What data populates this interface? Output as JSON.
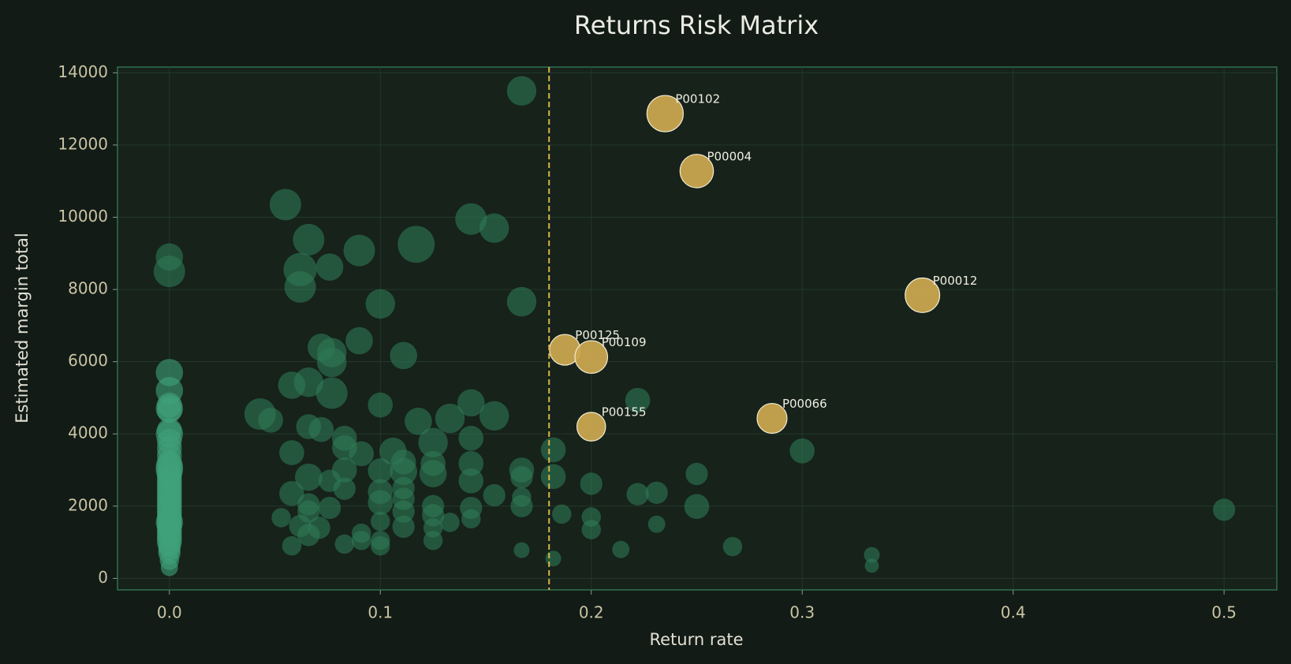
{
  "chart_data": {
    "type": "scatter",
    "title": "Returns Risk Matrix",
    "x_label": "Return rate",
    "y_label": "Estimated margin total",
    "xlim": [
      -0.0246,
      0.525
    ],
    "ylim": [
      -319,
      14160
    ],
    "xticks": [
      {
        "value": 0,
        "label": "0.0"
      },
      0.1,
      0.2,
      0.3,
      0.4,
      0.5
    ],
    "yticks": [
      0,
      2000,
      4000,
      6000,
      8000,
      10000,
      12000,
      14000
    ],
    "grid": true,
    "threshold": {
      "x": 0.18,
      "color": "#d9b44a"
    },
    "series": [
      {
        "color": "#2f7a55",
        "opacity": 0.6,
        "x": [
          0.167,
          0.055,
          0.143,
          0.154,
          0.117,
          0.066,
          0.09,
          0.062,
          0.076,
          0.062,
          0.1,
          0.167,
          0.0,
          0.0,
          0.072,
          0.077,
          0.077,
          0.09,
          0.111,
          0.058,
          0.066,
          0.077,
          0.043,
          0.048,
          0.066,
          0.072,
          0.1,
          0.118,
          0.133,
          0.143,
          0.154,
          0.083,
          0.083,
          0.091,
          0.106,
          0.111,
          0.125,
          0.143,
          0.058,
          0.066,
          0.083,
          0.1,
          0.111,
          0.125,
          0.125,
          0.143,
          0.143,
          0.167,
          0.167,
          0.182,
          0.182,
          0.2,
          0.222,
          0.222,
          0.231,
          0.25,
          0.25,
          0.3,
          0.058,
          0.066,
          0.076,
          0.083,
          0.1,
          0.1,
          0.111,
          0.111,
          0.111,
          0.125,
          0.125,
          0.143,
          0.154,
          0.167,
          0.167,
          0.053,
          0.062,
          0.066,
          0.066,
          0.071,
          0.076,
          0.083,
          0.091,
          0.091,
          0.1,
          0.1,
          0.1,
          0.111,
          0.125,
          0.125,
          0.133,
          0.143,
          0.058,
          0.167,
          0.182,
          0.186,
          0.2,
          0.2,
          0.214,
          0.231,
          0.267,
          0.333,
          0.333,
          0.5
        ],
        "values": [
          13500,
          10350,
          9950,
          9700,
          9250,
          9380,
          9080,
          8550,
          8620,
          8070,
          7600,
          7660,
          8900,
          8500,
          6400,
          6250,
          5980,
          6580,
          6170,
          5350,
          5430,
          5130,
          4550,
          4380,
          4200,
          4120,
          4800,
          4350,
          4430,
          4860,
          4500,
          3880,
          3620,
          3450,
          3520,
          3220,
          3760,
          3880,
          3480,
          2800,
          3000,
          2980,
          2960,
          3180,
          2900,
          3180,
          2700,
          3000,
          2800,
          3560,
          2820,
          2620,
          4930,
          2330,
          2370,
          2890,
          1990,
          3530,
          2350,
          2050,
          2700,
          2480,
          2400,
          2100,
          2500,
          2200,
          1850,
          2000,
          1750,
          1950,
          2300,
          2250,
          2000,
          1680,
          1450,
          1850,
          1200,
          1400,
          1950,
          950,
          1250,
          1050,
          1580,
          1050,
          900,
          1430,
          1400,
          1050,
          1550,
          1650,
          900,
          780,
          550,
          1780,
          1700,
          1350,
          800,
          1500,
          880,
          650,
          350,
          1900
        ],
        "sizes": [
          350,
          400,
          400,
          350,
          550,
          400,
          400,
          450,
          300,
          400,
          350,
          350,
          300,
          400,
          300,
          350,
          350,
          300,
          300,
          300,
          350,
          400,
          400,
          250,
          250,
          250,
          250,
          300,
          350,
          300,
          350,
          250,
          250,
          250,
          300,
          250,
          350,
          250,
          250,
          300,
          250,
          250,
          300,
          250,
          300,
          250,
          250,
          250,
          200,
          250,
          250,
          200,
          250,
          200,
          200,
          200,
          250,
          250,
          250,
          200,
          200,
          200,
          250,
          250,
          200,
          200,
          200,
          200,
          200,
          200,
          200,
          150,
          200,
          150,
          200,
          200,
          200,
          200,
          200,
          150,
          150,
          150,
          150,
          150,
          150,
          200,
          150,
          150,
          150,
          150,
          150,
          100,
          100,
          150,
          150,
          150,
          120,
          120,
          150,
          100,
          80,
          200
        ]
      },
      {
        "color": "#3fa27a",
        "opacity": 0.6,
        "x": [
          0,
          0,
          0,
          0,
          0,
          0,
          0,
          0,
          0,
          0,
          0,
          0,
          0,
          0,
          0,
          0,
          0,
          0,
          0,
          0,
          0,
          0,
          0,
          0,
          0,
          0,
          0,
          0,
          0,
          0,
          0,
          0,
          0,
          0,
          0,
          0,
          0,
          0,
          0
        ],
        "values": [
          5700,
          5200,
          4800,
          4700,
          4650,
          4100,
          4000,
          3800,
          3600,
          3400,
          3200,
          3100,
          3000,
          2900,
          2800,
          2700,
          2600,
          2500,
          2400,
          2300,
          2200,
          2100,
          2000,
          1900,
          1800,
          1700,
          1600,
          1550,
          1500,
          1400,
          1300,
          1200,
          1100,
          1000,
          900,
          800,
          700,
          500,
          300
        ],
        "sizes": [
          300,
          300,
          250,
          300,
          250,
          250,
          300,
          250,
          250,
          250,
          250,
          300,
          300,
          250,
          250,
          250,
          250,
          250,
          250,
          250,
          250,
          250,
          250,
          250,
          250,
          250,
          250,
          300,
          250,
          250,
          250,
          250,
          250,
          250,
          200,
          200,
          200,
          150,
          120
        ]
      },
      {
        "color": "#c9a64f",
        "opacity": 0.95,
        "x": [
          0.235,
          0.25,
          0.357,
          0.1875,
          0.2,
          0.2,
          0.2857
        ],
        "values": [
          12870,
          11280,
          7840,
          6330,
          6130,
          4200,
          4430
        ],
        "sizes": [
          530,
          450,
          480,
          380,
          430,
          330,
          360
        ],
        "labels": [
          "P00102",
          "P00004",
          "P00012",
          "P00125",
          "P00109",
          "P00155",
          "P00066"
        ]
      }
    ]
  }
}
